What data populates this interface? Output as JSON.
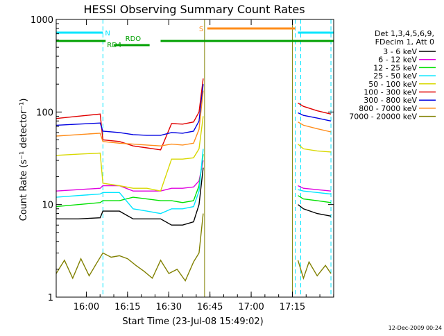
{
  "chart_data": {
    "type": "line",
    "title": "HESSI Observing Summary Count Rates",
    "xlabel": "Start Time (23-Jul-08 15:49:02)",
    "ylabel": "Count Rate (s⁻¹ detector⁻¹)",
    "y_scale": "log",
    "ylim": [
      1,
      1000
    ],
    "xlim_minutes_after_start": [
      0,
      101
    ],
    "y_ticks": [
      "1",
      "10",
      "100",
      "1000"
    ],
    "x_ticks": [
      "16:00",
      "16:15",
      "16:30",
      "16:45",
      "17:00",
      "17:15"
    ],
    "grid": false,
    "legend_placement": "right",
    "legend_header": [
      "Det 1,3,4,5,6,9,",
      "FDecim 1, Att 0"
    ],
    "footer": "12-Dec-2009 00:24",
    "flags": [
      {
        "label": "N",
        "color": "#00e5ff",
        "segments": [
          [
            0,
            17
          ],
          [
            88,
            101
          ]
        ]
      },
      {
        "label": "S",
        "color": "#ff8c1a",
        "segments": [
          [
            55,
            87
          ]
        ]
      },
      {
        "label": "RD4",
        "color": "#00a000"
      },
      {
        "label": "RDO",
        "color": "#00a000"
      }
    ],
    "night_boundaries_minutes": [
      17,
      87,
      89,
      100
    ],
    "saa_boundaries_minutes": [
      54,
      86
    ],
    "series": [
      {
        "name": "3 - 6 keV",
        "color": "#000000",
        "x": [
          0,
          8,
          16,
          17,
          23,
          28,
          33,
          38,
          42,
          46,
          50,
          52,
          53.5,
          88,
          90,
          95,
          100
        ],
        "y": [
          7,
          7,
          7.2,
          8.5,
          8.5,
          7,
          7,
          7,
          6,
          6,
          6.5,
          10,
          25,
          10,
          9,
          8,
          7.5
        ]
      },
      {
        "name": "6 - 12 keV",
        "color": "#e000e0",
        "x": [
          0,
          8,
          16,
          17,
          23,
          28,
          33,
          38,
          42,
          46,
          50,
          52,
          53.5,
          88,
          90,
          95,
          100
        ],
        "y": [
          14,
          14.5,
          15,
          16,
          16,
          14,
          14,
          14,
          15,
          15,
          15.5,
          18,
          30,
          16,
          15,
          14.5,
          14
        ]
      },
      {
        "name": "12 - 25 keV",
        "color": "#00e000",
        "x": [
          0,
          8,
          16,
          17,
          23,
          28,
          33,
          38,
          42,
          46,
          50,
          52,
          53.5,
          88,
          90,
          95,
          100
        ],
        "y": [
          9.5,
          10,
          10.5,
          11,
          11,
          12,
          11.5,
          11,
          11,
          10.5,
          11,
          16,
          35,
          12.5,
          11.5,
          11,
          10.5
        ]
      },
      {
        "name": "25 - 50 keV",
        "color": "#00e5ff",
        "x": [
          0,
          8,
          16,
          17,
          23,
          28,
          33,
          38,
          42,
          46,
          50,
          52,
          53.5,
          88,
          90,
          95,
          100
        ],
        "y": [
          12,
          12.5,
          13,
          13.5,
          13.5,
          9,
          8.5,
          8,
          9,
          9,
          9.5,
          14,
          40,
          14.5,
          14,
          13.5,
          13
        ]
      },
      {
        "name": "50 - 100 keV",
        "color": "#d8d800",
        "x": [
          0,
          8,
          16,
          17,
          23,
          28,
          33,
          38,
          42,
          46,
          50,
          52,
          53.5,
          88,
          90,
          95,
          100
        ],
        "y": [
          34,
          35,
          36,
          17,
          16,
          15,
          15,
          14,
          31,
          31,
          32,
          40,
          90,
          45,
          40,
          38,
          37
        ]
      },
      {
        "name": "100 - 300 keV",
        "color": "#e00000",
        "x": [
          0,
          8,
          16,
          17,
          23,
          28,
          33,
          38,
          42,
          46,
          50,
          52,
          53.5,
          88,
          90,
          95,
          100
        ],
        "y": [
          85,
          90,
          95,
          50,
          48,
          43,
          41,
          39,
          75,
          74,
          78,
          100,
          230,
          125,
          115,
          103,
          95
        ]
      },
      {
        "name": "300 - 800 keV",
        "color": "#0000e0",
        "x": [
          0,
          8,
          16,
          17,
          23,
          28,
          33,
          38,
          42,
          46,
          50,
          52,
          53.5,
          88,
          90,
          95,
          100
        ],
        "y": [
          72,
          74,
          76,
          62,
          60,
          57,
          56,
          56,
          60,
          59,
          62,
          80,
          200,
          98,
          92,
          86,
          80
        ]
      },
      {
        "name": "800 - 7000 keV",
        "color": "#ff8c1a",
        "x": [
          0,
          8,
          16,
          17,
          23,
          28,
          33,
          38,
          42,
          46,
          50,
          52,
          53.5,
          88,
          90,
          95,
          100
        ],
        "y": [
          55,
          57,
          59,
          48,
          46,
          45,
          44,
          43,
          45,
          44,
          46,
          65,
          170,
          78,
          72,
          66,
          61
        ]
      },
      {
        "name": "7000 - 20000 keV",
        "color": "#808000",
        "x": [
          0,
          3,
          6,
          9,
          12,
          15,
          17,
          20,
          23,
          26,
          29,
          32,
          35,
          38,
          41,
          44,
          47,
          50,
          52,
          53.5,
          88,
          90,
          92,
          95,
          98,
          100
        ],
        "y": [
          1.8,
          2.5,
          1.6,
          2.6,
          1.7,
          2.4,
          3,
          2.7,
          2.8,
          2.6,
          2.2,
          1.9,
          1.6,
          2.5,
          1.8,
          2.0,
          1.5,
          2.4,
          3,
          8,
          2.5,
          1.6,
          2.4,
          1.7,
          2.2,
          1.8
        ]
      }
    ]
  }
}
